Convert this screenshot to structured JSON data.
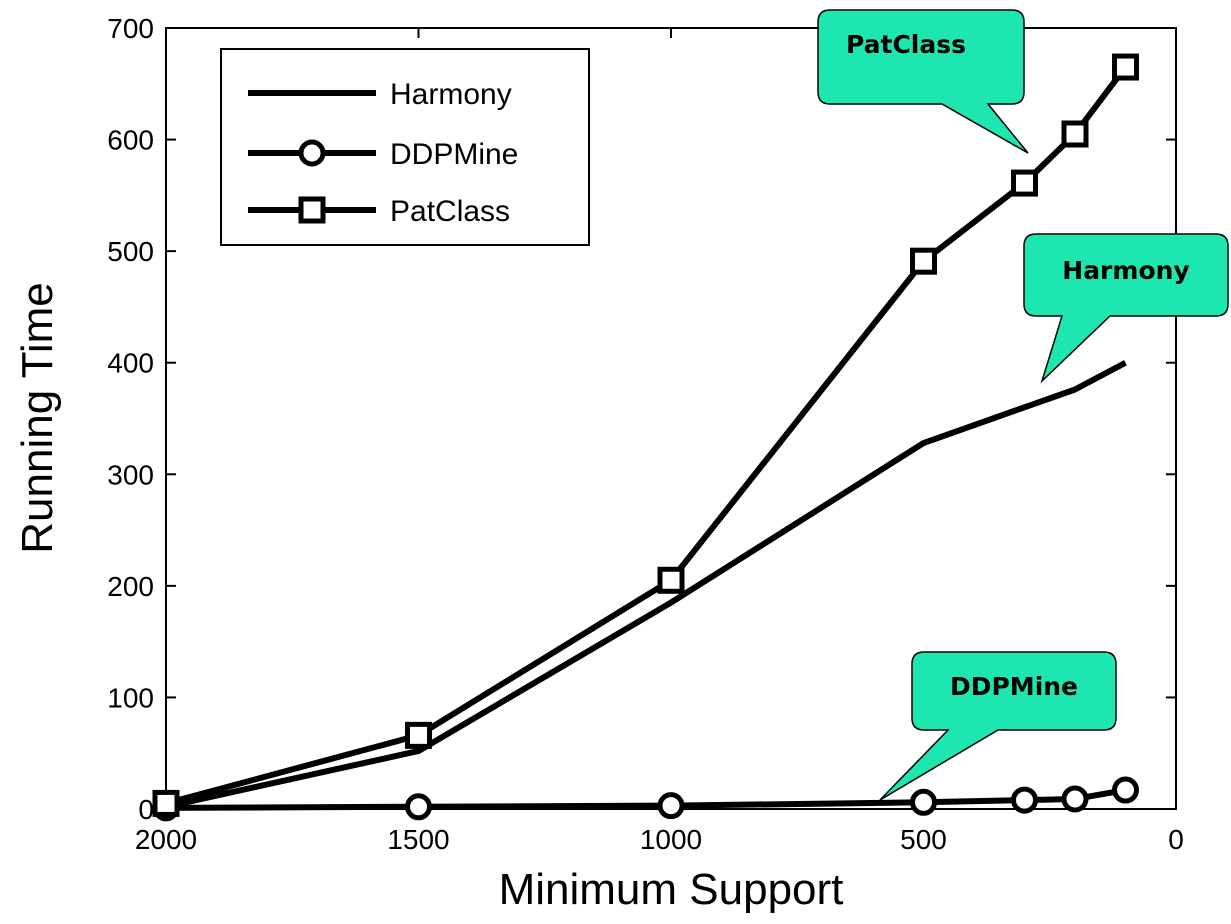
{
  "chart_data": {
    "type": "line",
    "title": "",
    "xlabel": "Minimum Support",
    "ylabel": "Running Time",
    "xlim": [
      2000,
      0
    ],
    "ylim": [
      0,
      700
    ],
    "x_reversed": true,
    "xticks": [
      2000,
      1500,
      1000,
      500,
      0
    ],
    "yticks": [
      0,
      100,
      200,
      300,
      400,
      500,
      600,
      700
    ],
    "grid": false,
    "legend": {
      "position": "top-left",
      "entries": [
        "Harmony",
        "DDPMine",
        "PatClass"
      ]
    },
    "series": [
      {
        "name": "Harmony",
        "marker": "none",
        "color": "#000000",
        "x": [
          2000,
          1500,
          1000,
          500,
          300,
          200,
          100
        ],
        "y": [
          2,
          52,
          185,
          328,
          360,
          376,
          400
        ]
      },
      {
        "name": "DDPMine",
        "marker": "circle",
        "color": "#000000",
        "x": [
          2000,
          1500,
          1000,
          500,
          300,
          200,
          100
        ],
        "y": [
          1,
          2,
          3,
          6,
          8,
          9,
          17
        ]
      },
      {
        "name": "PatClass",
        "marker": "square",
        "color": "#000000",
        "x": [
          2000,
          1500,
          1000,
          500,
          300,
          200,
          100
        ],
        "y": [
          5,
          66,
          205,
          491,
          561,
          605,
          665
        ]
      }
    ],
    "annotations": [
      {
        "text": "PatClass",
        "series": "PatClass",
        "color": "#1de6b0"
      },
      {
        "text": "Harmony",
        "series": "Harmony",
        "color": "#1de6b0"
      },
      {
        "text": "DDPMine",
        "series": "DDPMine",
        "color": "#1de6b0"
      }
    ]
  }
}
